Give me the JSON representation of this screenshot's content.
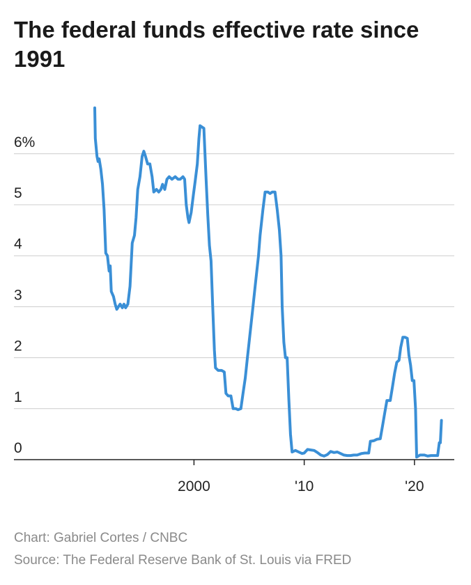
{
  "chart_data": {
    "type": "line",
    "title": "The federal funds effective rate since 1991",
    "xlabel": "",
    "ylabel": "",
    "xlim": [
      1991,
      2022.6
    ],
    "ylim": [
      0,
      7
    ],
    "grid": true,
    "legend": "none",
    "y_ticks": [
      {
        "value": 0,
        "label": "0"
      },
      {
        "value": 1,
        "label": "1"
      },
      {
        "value": 2,
        "label": "2"
      },
      {
        "value": 3,
        "label": "3"
      },
      {
        "value": 4,
        "label": "4"
      },
      {
        "value": 5,
        "label": "5"
      },
      {
        "value": 6,
        "label": "6%"
      }
    ],
    "x_ticks": [
      {
        "value": 2000,
        "label": "2000"
      },
      {
        "value": 2010,
        "label": "'10"
      },
      {
        "value": 2020,
        "label": "'20"
      }
    ],
    "series": [
      {
        "color": "#3a8fd6",
        "points": [
          [
            1991.0,
            6.9
          ],
          [
            1991.05,
            6.3
          ],
          [
            1991.2,
            5.95
          ],
          [
            1991.3,
            5.85
          ],
          [
            1991.4,
            5.9
          ],
          [
            1991.55,
            5.7
          ],
          [
            1991.7,
            5.4
          ],
          [
            1991.85,
            4.9
          ],
          [
            1992.0,
            4.05
          ],
          [
            1992.15,
            4.0
          ],
          [
            1992.3,
            3.7
          ],
          [
            1992.4,
            3.8
          ],
          [
            1992.5,
            3.3
          ],
          [
            1992.7,
            3.2
          ],
          [
            1992.85,
            3.05
          ],
          [
            1993.0,
            2.95
          ],
          [
            1993.3,
            3.05
          ],
          [
            1993.5,
            2.98
          ],
          [
            1993.65,
            3.05
          ],
          [
            1993.8,
            2.98
          ],
          [
            1994.0,
            3.05
          ],
          [
            1994.2,
            3.4
          ],
          [
            1994.4,
            4.25
          ],
          [
            1994.6,
            4.4
          ],
          [
            1994.75,
            4.75
          ],
          [
            1994.9,
            5.3
          ],
          [
            1995.1,
            5.55
          ],
          [
            1995.3,
            5.95
          ],
          [
            1995.45,
            6.05
          ],
          [
            1995.6,
            5.95
          ],
          [
            1995.8,
            5.8
          ],
          [
            1996.0,
            5.8
          ],
          [
            1996.2,
            5.55
          ],
          [
            1996.35,
            5.25
          ],
          [
            1996.6,
            5.3
          ],
          [
            1996.8,
            5.25
          ],
          [
            1997.0,
            5.3
          ],
          [
            1997.15,
            5.4
          ],
          [
            1997.35,
            5.3
          ],
          [
            1997.55,
            5.5
          ],
          [
            1997.75,
            5.55
          ],
          [
            1998.0,
            5.5
          ],
          [
            1998.3,
            5.55
          ],
          [
            1998.55,
            5.5
          ],
          [
            1998.75,
            5.5
          ],
          [
            1999.0,
            5.55
          ],
          [
            1999.15,
            5.5
          ],
          [
            1999.3,
            5.0
          ],
          [
            1999.45,
            4.75
          ],
          [
            1999.55,
            4.65
          ],
          [
            1999.75,
            4.85
          ],
          [
            1999.95,
            5.2
          ],
          [
            2000.1,
            5.45
          ],
          [
            2000.3,
            5.8
          ],
          [
            2000.45,
            6.3
          ],
          [
            2000.55,
            6.55
          ],
          [
            2000.75,
            6.52
          ],
          [
            2000.9,
            6.5
          ],
          [
            2001.0,
            6.0
          ],
          [
            2001.1,
            5.5
          ],
          [
            2001.25,
            4.8
          ],
          [
            2001.4,
            4.2
          ],
          [
            2001.55,
            3.9
          ],
          [
            2001.7,
            3.0
          ],
          [
            2001.85,
            2.15
          ],
          [
            2001.95,
            1.8
          ],
          [
            2002.2,
            1.75
          ],
          [
            2002.5,
            1.75
          ],
          [
            2002.75,
            1.72
          ],
          [
            2002.9,
            1.3
          ],
          [
            2003.1,
            1.25
          ],
          [
            2003.35,
            1.25
          ],
          [
            2003.55,
            1.0
          ],
          [
            2003.8,
            1.0
          ],
          [
            2004.0,
            0.98
          ],
          [
            2004.25,
            1.0
          ],
          [
            2004.45,
            1.3
          ],
          [
            2004.65,
            1.6
          ],
          [
            2004.85,
            2.0
          ],
          [
            2005.0,
            2.3
          ],
          [
            2005.3,
            2.9
          ],
          [
            2005.55,
            3.4
          ],
          [
            2005.85,
            4.0
          ],
          [
            2006.0,
            4.4
          ],
          [
            2006.25,
            4.9
          ],
          [
            2006.45,
            5.25
          ],
          [
            2006.7,
            5.25
          ],
          [
            2006.9,
            5.22
          ],
          [
            2007.1,
            5.25
          ],
          [
            2007.35,
            5.25
          ],
          [
            2007.55,
            4.9
          ],
          [
            2007.75,
            4.5
          ],
          [
            2007.9,
            4.0
          ],
          [
            2008.0,
            3.0
          ],
          [
            2008.15,
            2.3
          ],
          [
            2008.3,
            2.0
          ],
          [
            2008.45,
            2.0
          ],
          [
            2008.6,
            1.2
          ],
          [
            2008.75,
            0.5
          ],
          [
            2008.9,
            0.15
          ],
          [
            2009.2,
            0.18
          ],
          [
            2009.5,
            0.15
          ],
          [
            2009.8,
            0.12
          ],
          [
            2010.0,
            0.13
          ],
          [
            2010.3,
            0.2
          ],
          [
            2010.6,
            0.19
          ],
          [
            2010.9,
            0.18
          ],
          [
            2011.2,
            0.14
          ],
          [
            2011.5,
            0.09
          ],
          [
            2011.8,
            0.07
          ],
          [
            2012.1,
            0.1
          ],
          [
            2012.4,
            0.16
          ],
          [
            2012.7,
            0.14
          ],
          [
            2013.0,
            0.15
          ],
          [
            2013.3,
            0.12
          ],
          [
            2013.6,
            0.09
          ],
          [
            2013.9,
            0.08
          ],
          [
            2014.2,
            0.08
          ],
          [
            2014.5,
            0.09
          ],
          [
            2014.8,
            0.09
          ],
          [
            2015.2,
            0.12
          ],
          [
            2015.5,
            0.13
          ],
          [
            2015.85,
            0.13
          ],
          [
            2016.0,
            0.36
          ],
          [
            2016.3,
            0.37
          ],
          [
            2016.6,
            0.4
          ],
          [
            2016.9,
            0.41
          ],
          [
            2017.1,
            0.66
          ],
          [
            2017.3,
            0.91
          ],
          [
            2017.5,
            1.16
          ],
          [
            2017.8,
            1.16
          ],
          [
            2018.0,
            1.42
          ],
          [
            2018.2,
            1.7
          ],
          [
            2018.4,
            1.91
          ],
          [
            2018.6,
            1.95
          ],
          [
            2018.75,
            2.2
          ],
          [
            2018.95,
            2.4
          ],
          [
            2019.15,
            2.4
          ],
          [
            2019.35,
            2.38
          ],
          [
            2019.5,
            2.05
          ],
          [
            2019.65,
            1.85
          ],
          [
            2019.8,
            1.55
          ],
          [
            2019.95,
            1.55
          ],
          [
            2020.1,
            1.0
          ],
          [
            2020.2,
            0.05
          ],
          [
            2020.5,
            0.09
          ],
          [
            2020.9,
            0.09
          ],
          [
            2021.2,
            0.07
          ],
          [
            2021.5,
            0.08
          ],
          [
            2021.8,
            0.08
          ],
          [
            2022.1,
            0.08
          ],
          [
            2022.25,
            0.33
          ],
          [
            2022.35,
            0.33
          ],
          [
            2022.45,
            0.77
          ]
        ]
      }
    ]
  },
  "footer": {
    "credit": "Chart: Gabriel Cortes / CNBC",
    "source": "Source: The Federal Reserve Bank of St. Louis via FRED"
  }
}
